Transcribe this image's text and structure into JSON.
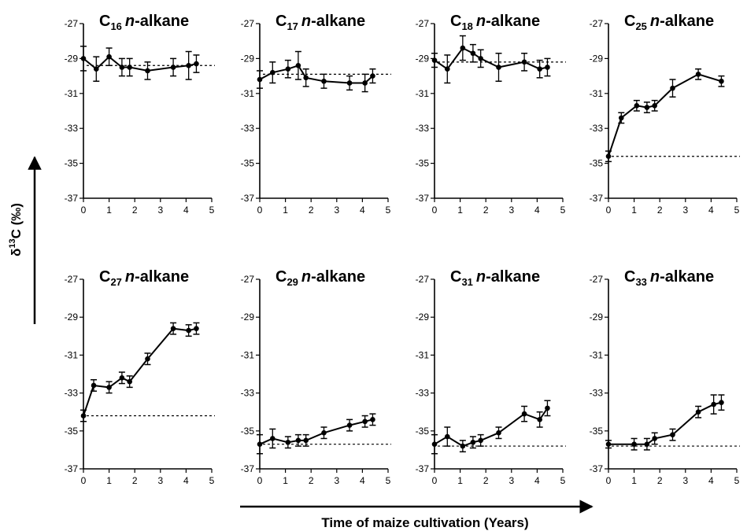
{
  "figure": {
    "ylabel": "δ13C (‰)",
    "ylabel_parts": {
      "pre": "δ",
      "sup": "13",
      "post": "C (‰)"
    },
    "xlabel": "Time of maize cultivation (Years)"
  },
  "chart_data": [
    {
      "type": "line",
      "panel": "C16",
      "title": "C16 n-alkane",
      "title_parts": {
        "c": "C",
        "sub": "16",
        "name": "n-alkane"
      },
      "xlim": [
        0,
        5
      ],
      "ylim": [
        -37,
        -27
      ],
      "xticks": [
        0,
        1,
        2,
        3,
        4,
        5
      ],
      "yticks": [
        -27,
        -29,
        -31,
        -33,
        -35,
        -37
      ],
      "grid": false,
      "baseline": -29.4,
      "x": [
        0,
        0.5,
        1,
        1.5,
        1.8,
        2.5,
        3.5,
        4.1,
        4.4
      ],
      "y": [
        -29.0,
        -29.6,
        -28.9,
        -29.5,
        -29.5,
        -29.7,
        -29.5,
        -29.4,
        -29.3
      ],
      "err": [
        0.7,
        0.7,
        0.5,
        0.5,
        0.5,
        0.5,
        0.5,
        0.8,
        0.5
      ]
    },
    {
      "type": "line",
      "panel": "C17",
      "title": "C17 n-alkane",
      "title_parts": {
        "c": "C",
        "sub": "17",
        "name": "n-alkane"
      },
      "xlim": [
        0,
        5
      ],
      "ylim": [
        -37,
        -27
      ],
      "xticks": [
        0,
        1,
        2,
        3,
        4,
        5
      ],
      "yticks": [
        -27,
        -29,
        -31,
        -33,
        -35,
        -37
      ],
      "grid": false,
      "baseline": -29.9,
      "x": [
        0,
        0.5,
        1.1,
        1.5,
        1.8,
        2.5,
        3.5,
        4.1,
        4.4
      ],
      "y": [
        -30.2,
        -29.8,
        -29.6,
        -29.4,
        -30.1,
        -30.3,
        -30.4,
        -30.4,
        -30.0
      ],
      "err": [
        0.5,
        0.6,
        0.5,
        0.8,
        0.5,
        0.4,
        0.4,
        0.5,
        0.4
      ]
    },
    {
      "type": "line",
      "panel": "C18",
      "title": "C18 n-alkane",
      "title_parts": {
        "c": "C",
        "sub": "18",
        "name": "n-alkane"
      },
      "xlim": [
        0,
        5
      ],
      "ylim": [
        -37,
        -27
      ],
      "xticks": [
        0,
        1,
        2,
        3,
        4,
        5
      ],
      "yticks": [
        -27,
        -29,
        -31,
        -33,
        -35,
        -37
      ],
      "grid": false,
      "baseline": -29.2,
      "x": [
        0,
        0.5,
        1.1,
        1.5,
        1.8,
        2.5,
        3.5,
        4.1,
        4.4
      ],
      "y": [
        -29.1,
        -29.6,
        -28.4,
        -28.7,
        -29.0,
        -29.5,
        -29.2,
        -29.6,
        -29.5
      ],
      "err": [
        0.4,
        0.8,
        0.7,
        0.5,
        0.5,
        0.8,
        0.5,
        0.5,
        0.5
      ]
    },
    {
      "type": "line",
      "panel": "C25",
      "title": "C25 n-alkane",
      "title_parts": {
        "c": "C",
        "sub": "25",
        "name": "n-alkane"
      },
      "xlim": [
        0,
        5
      ],
      "ylim": [
        -37,
        -27
      ],
      "xticks": [
        0,
        1,
        2,
        3,
        4,
        5
      ],
      "yticks": [
        -27,
        -29,
        -31,
        -33,
        -35,
        -37
      ],
      "grid": false,
      "baseline": -34.6,
      "x": [
        0,
        0.5,
        1.1,
        1.5,
        1.8,
        2.5,
        3.5,
        4.4
      ],
      "y": [
        -34.6,
        -32.4,
        -31.7,
        -31.8,
        -31.7,
        -30.7,
        -29.9,
        -30.3
      ],
      "err": [
        0.3,
        0.3,
        0.3,
        0.3,
        0.3,
        0.5,
        0.3,
        0.3
      ]
    },
    {
      "type": "line",
      "panel": "C27",
      "title": "C27 n-alkane",
      "title_parts": {
        "c": "C",
        "sub": "27",
        "name": "n-alkane"
      },
      "xlim": [
        0,
        5
      ],
      "ylim": [
        -37,
        -27
      ],
      "xticks": [
        0,
        1,
        2,
        3,
        4,
        5
      ],
      "yticks": [
        -27,
        -29,
        -31,
        -33,
        -35,
        -37
      ],
      "grid": false,
      "baseline": -34.2,
      "x": [
        0,
        0.4,
        1,
        1.5,
        1.8,
        2.5,
        3.5,
        4.1,
        4.4
      ],
      "y": [
        -34.2,
        -32.6,
        -32.7,
        -32.2,
        -32.4,
        -31.2,
        -29.6,
        -29.7,
        -29.6
      ],
      "err": [
        0.3,
        0.3,
        0.3,
        0.3,
        0.3,
        0.3,
        0.3,
        0.3,
        0.3
      ]
    },
    {
      "type": "line",
      "panel": "C29",
      "title": "C29 n-alkane",
      "title_parts": {
        "c": "C",
        "sub": "29",
        "name": "n-alkane"
      },
      "xlim": [
        0,
        5
      ],
      "ylim": [
        -37,
        -27
      ],
      "xticks": [
        0,
        1,
        2,
        3,
        4,
        5
      ],
      "yticks": [
        -27,
        -29,
        -31,
        -33,
        -35,
        -37
      ],
      "grid": false,
      "baseline": -35.7,
      "x": [
        0,
        0.5,
        1.1,
        1.5,
        1.8,
        2.5,
        3.5,
        4.1,
        4.4
      ],
      "y": [
        -35.7,
        -35.4,
        -35.6,
        -35.5,
        -35.5,
        -35.1,
        -34.7,
        -34.5,
        -34.4
      ],
      "err": [
        0.5,
        0.5,
        0.3,
        0.3,
        0.3,
        0.3,
        0.3,
        0.3,
        0.3
      ]
    },
    {
      "type": "line",
      "panel": "C31",
      "title": "C31 n-alkane",
      "title_parts": {
        "c": "C",
        "sub": "31",
        "name": "n-alkane"
      },
      "xlim": [
        0,
        5
      ],
      "ylim": [
        -37,
        -27
      ],
      "xticks": [
        0,
        1,
        2,
        3,
        4,
        5
      ],
      "yticks": [
        -27,
        -29,
        -31,
        -33,
        -35,
        -37
      ],
      "grid": false,
      "baseline": -35.8,
      "x": [
        0,
        0.5,
        1.1,
        1.5,
        1.8,
        2.5,
        3.5,
        4.1,
        4.4
      ],
      "y": [
        -35.7,
        -35.3,
        -35.8,
        -35.6,
        -35.5,
        -35.1,
        -34.1,
        -34.4,
        -33.8
      ],
      "err": [
        0.5,
        0.5,
        0.3,
        0.3,
        0.3,
        0.3,
        0.4,
        0.4,
        0.4
      ]
    },
    {
      "type": "line",
      "panel": "C33",
      "title": "C33 n-alkane",
      "title_parts": {
        "c": "C",
        "sub": "33",
        "name": "n-alkane"
      },
      "xlim": [
        0,
        5
      ],
      "ylim": [
        -37,
        -27
      ],
      "xticks": [
        0,
        1,
        2,
        3,
        4,
        5
      ],
      "yticks": [
        -27,
        -29,
        -31,
        -33,
        -35,
        -37
      ],
      "grid": false,
      "baseline": -35.8,
      "x": [
        0,
        1,
        1.5,
        1.8,
        2.5,
        3.5,
        4.1,
        4.4
      ],
      "y": [
        -35.7,
        -35.7,
        -35.7,
        -35.4,
        -35.2,
        -34.0,
        -33.6,
        -33.5
      ],
      "err": [
        0.2,
        0.3,
        0.3,
        0.3,
        0.3,
        0.3,
        0.5,
        0.4
      ]
    }
  ]
}
